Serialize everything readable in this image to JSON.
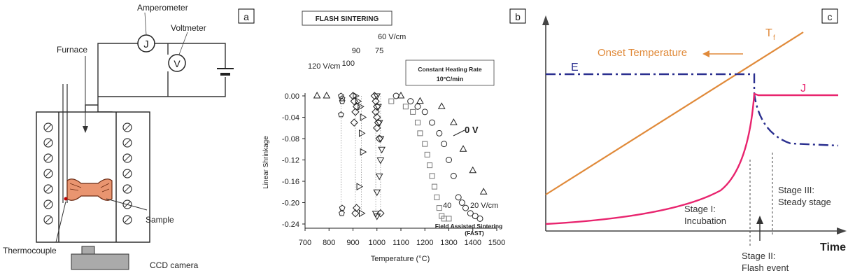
{
  "panel_a": {
    "tag": "a",
    "labels": {
      "amperometer": "Amperometer",
      "voltmeter": "Voltmeter",
      "furnace": "Furnace",
      "sample": "Sample",
      "thermocouple": "Thermocouple",
      "ccd": "CCD camera",
      "ammeter_symbol": "J",
      "voltmeter_symbol": "V"
    }
  },
  "panel_b": {
    "tag": "b",
    "title_box": "FLASH SINTERING",
    "rate_box": {
      "line1": "Constant Heating Rate",
      "line2": "10°C/min"
    },
    "fast_label": {
      "line1": "Field Assisted Sintering",
      "line2": "(FAST)"
    },
    "field_labels": [
      "120 V/cm",
      "100",
      "90",
      "75",
      "60 V/cm"
    ],
    "curve_labels": [
      "0 V",
      "20 V/cm",
      "40"
    ],
    "chart_data": {
      "type": "scatter",
      "xlabel": "Temperature (°C)",
      "ylabel": "Linear Shrinkage",
      "xlim": [
        700,
        1500
      ],
      "ylim": [
        -0.24,
        0.0
      ],
      "x_ticks": [
        "700",
        "800",
        "900",
        "1000",
        "1100",
        "1200",
        "1300",
        "1400",
        "1500"
      ],
      "y_ticks": [
        "0.00",
        "-0.04",
        "-0.08",
        "-0.12",
        "-0.16",
        "-0.20",
        "-0.24"
      ],
      "series": [
        {
          "name": "0 V",
          "marker": "triangle-up",
          "x": [
            750,
            790,
            1100,
            1180,
            1270,
            1320,
            1360,
            1400,
            1445
          ],
          "y": [
            0.0,
            0.0,
            0.0,
            -0.01,
            -0.02,
            -0.05,
            -0.1,
            -0.14,
            -0.18
          ]
        },
        {
          "name": "20 V/cm",
          "marker": "circle",
          "x": [
            1080,
            1140,
            1170,
            1200,
            1230,
            1260,
            1280,
            1300,
            1320,
            1340,
            1355,
            1370,
            1390,
            1410,
            1430
          ],
          "y": [
            0.0,
            -0.01,
            -0.02,
            -0.03,
            -0.05,
            -0.07,
            -0.09,
            -0.12,
            -0.15,
            -0.19,
            -0.2,
            -0.21,
            -0.22,
            -0.225,
            -0.23
          ]
        },
        {
          "name": "40",
          "marker": "square",
          "x": [
            1060,
            1120,
            1150,
            1170,
            1180,
            1200,
            1210,
            1220,
            1230,
            1240,
            1250,
            1260,
            1270,
            1280,
            1300
          ],
          "y": [
            -0.01,
            -0.02,
            -0.03,
            -0.05,
            -0.07,
            -0.09,
            -0.11,
            -0.13,
            -0.15,
            -0.17,
            -0.19,
            -0.21,
            -0.225,
            -0.23,
            -0.23
          ]
        },
        {
          "name": "60 V/cm",
          "marker": "triangle-down",
          "x": [
            1000,
            1005,
            1010,
            1015,
            1020,
            1015,
            1010,
            1000,
            995,
            1000
          ],
          "y": [
            0.0,
            -0.02,
            -0.05,
            -0.08,
            -0.1,
            -0.12,
            -0.15,
            -0.18,
            -0.22,
            -0.225
          ]
        },
        {
          "name": "75",
          "marker": "diamond",
          "x": [
            990,
            995,
            1000,
            995,
            1000,
            1005,
            1000,
            1010,
            1015
          ],
          "y": [
            0.0,
            -0.01,
            -0.02,
            -0.03,
            -0.04,
            -0.05,
            -0.06,
            -0.08,
            -0.22
          ]
        },
        {
          "name": "90",
          "marker": "triangle-right",
          "x": [
            910,
            920,
            930,
            940,
            935,
            940,
            925,
            935
          ],
          "y": [
            0.0,
            -0.01,
            -0.02,
            -0.04,
            -0.07,
            -0.105,
            -0.17,
            -0.22
          ]
        },
        {
          "name": "100",
          "marker": "diamond",
          "x": [
            900,
            905,
            915,
            910,
            905,
            915,
            910
          ],
          "y": [
            0.0,
            -0.01,
            -0.02,
            -0.03,
            -0.05,
            -0.21,
            -0.22
          ]
        },
        {
          "name": "120 V/cm",
          "marker": "pentagon",
          "x": [
            850,
            855,
            855,
            850,
            855,
            853
          ],
          "y": [
            0.0,
            -0.005,
            -0.01,
            -0.035,
            -0.21,
            -0.22
          ]
        }
      ]
    }
  },
  "panel_c": {
    "tag": "c",
    "labels": {
      "tf": "T",
      "tf_sub": "f",
      "onset": "Onset Temperature",
      "e": "E",
      "j": "J",
      "stage1_line1": "Stage I:",
      "stage1_line2": "Incubation",
      "stage2_line1": "Stage II:",
      "stage2_line2": "Flash event",
      "stage3_line1": "Stage III:",
      "stage3_line2": "Steady stage",
      "time": "Time"
    },
    "colors": {
      "onset": "#e08a3a",
      "e": "#2a2f8f",
      "j": "#e8246e"
    }
  }
}
